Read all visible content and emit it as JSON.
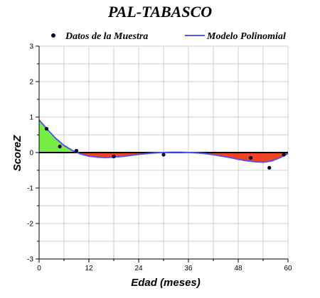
{
  "chart_data": {
    "type": "line",
    "title": "PAL-TABASCO",
    "xlabel": "Edad (meses)",
    "ylabel": "ScoreZ",
    "xlim": [
      0,
      60
    ],
    "ylim": [
      -3,
      3
    ],
    "x_ticks": [
      0,
      12,
      24,
      36,
      48,
      60
    ],
    "y_ticks": [
      -3,
      -2,
      -1,
      0,
      1,
      2,
      3
    ],
    "grid": true,
    "legend_position": "top",
    "series": [
      {
        "name": "Datos de la Muestra",
        "kind": "scatter",
        "color": "#000033",
        "points": [
          [
            1.8,
            0.67
          ],
          [
            5,
            0.17
          ],
          [
            9,
            0.05
          ],
          [
            18,
            -0.11
          ],
          [
            30,
            -0.06
          ],
          [
            51,
            -0.15
          ],
          [
            55.5,
            -0.43
          ],
          [
            59,
            -0.06
          ]
        ]
      },
      {
        "name": "Modelo Polinomial",
        "kind": "line",
        "color": "#5555ee",
        "points": [
          [
            0,
            0.92
          ],
          [
            2,
            0.65
          ],
          [
            4,
            0.4
          ],
          [
            6,
            0.2
          ],
          [
            8,
            0.06
          ],
          [
            10,
            -0.04
          ],
          [
            12,
            -0.1
          ],
          [
            14,
            -0.13
          ],
          [
            16,
            -0.14
          ],
          [
            18,
            -0.13
          ],
          [
            20,
            -0.11
          ],
          [
            22,
            -0.08
          ],
          [
            24,
            -0.05
          ],
          [
            26,
            -0.03
          ],
          [
            28,
            -0.01
          ],
          [
            30,
            0.0
          ],
          [
            32,
            0.01
          ],
          [
            34,
            0.01
          ],
          [
            36,
            0.0
          ],
          [
            38,
            -0.01
          ],
          [
            40,
            -0.03
          ],
          [
            42,
            -0.06
          ],
          [
            44,
            -0.1
          ],
          [
            46,
            -0.14
          ],
          [
            48,
            -0.19
          ],
          [
            50,
            -0.23
          ],
          [
            52,
            -0.26
          ],
          [
            54,
            -0.27
          ],
          [
            56,
            -0.24
          ],
          [
            58,
            -0.15
          ],
          [
            60,
            -0.03
          ]
        ]
      }
    ],
    "fill_colors": {
      "positive": "#77ee44",
      "negative": "#ee4422"
    }
  }
}
